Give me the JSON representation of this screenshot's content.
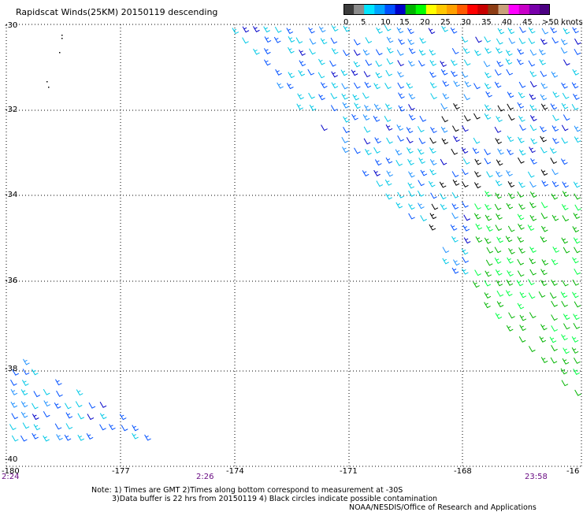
{
  "title": "Rapidscat Winds(25KM) 20150119 descending",
  "legend": {
    "units_label": ">50 knots",
    "ticks": [
      "0",
      "5",
      "10",
      "15",
      "20",
      "25",
      "30",
      "35",
      "40",
      "45"
    ],
    "colors": [
      "#3c3c3c",
      "#8c8c8c",
      "#00e5ff",
      "#00a4ff",
      "#0050ff",
      "#0000c8",
      "#00b400",
      "#00ff00",
      "#ffff00",
      "#ffc800",
      "#ffa000",
      "#ff5a00",
      "#ff0000",
      "#c80000",
      "#8c3c14",
      "#c8a07a",
      "#ff00ff",
      "#c800c8",
      "#7800aa",
      "#4b0082"
    ]
  },
  "axes": {
    "lat_labels": [
      "-30",
      "-32",
      "-34",
      "-36",
      "-38",
      "-40"
    ],
    "lon_labels": [
      "-180",
      "-177",
      "-174",
      "-171",
      "-168",
      "-16"
    ]
  },
  "pass_times": [
    "2:24",
    "2:26",
    "23:58"
  ],
  "notes": {
    "line1": "Note: 1) Times are GMT 2)Times along bottom correspond to measurement at -30S",
    "line2": "3)Data buffer is 22 hrs from 20150119 4) Black circles indicate possible contamination",
    "line3": "NOAA/NESDIS/Office of Research and Applications"
  }
}
